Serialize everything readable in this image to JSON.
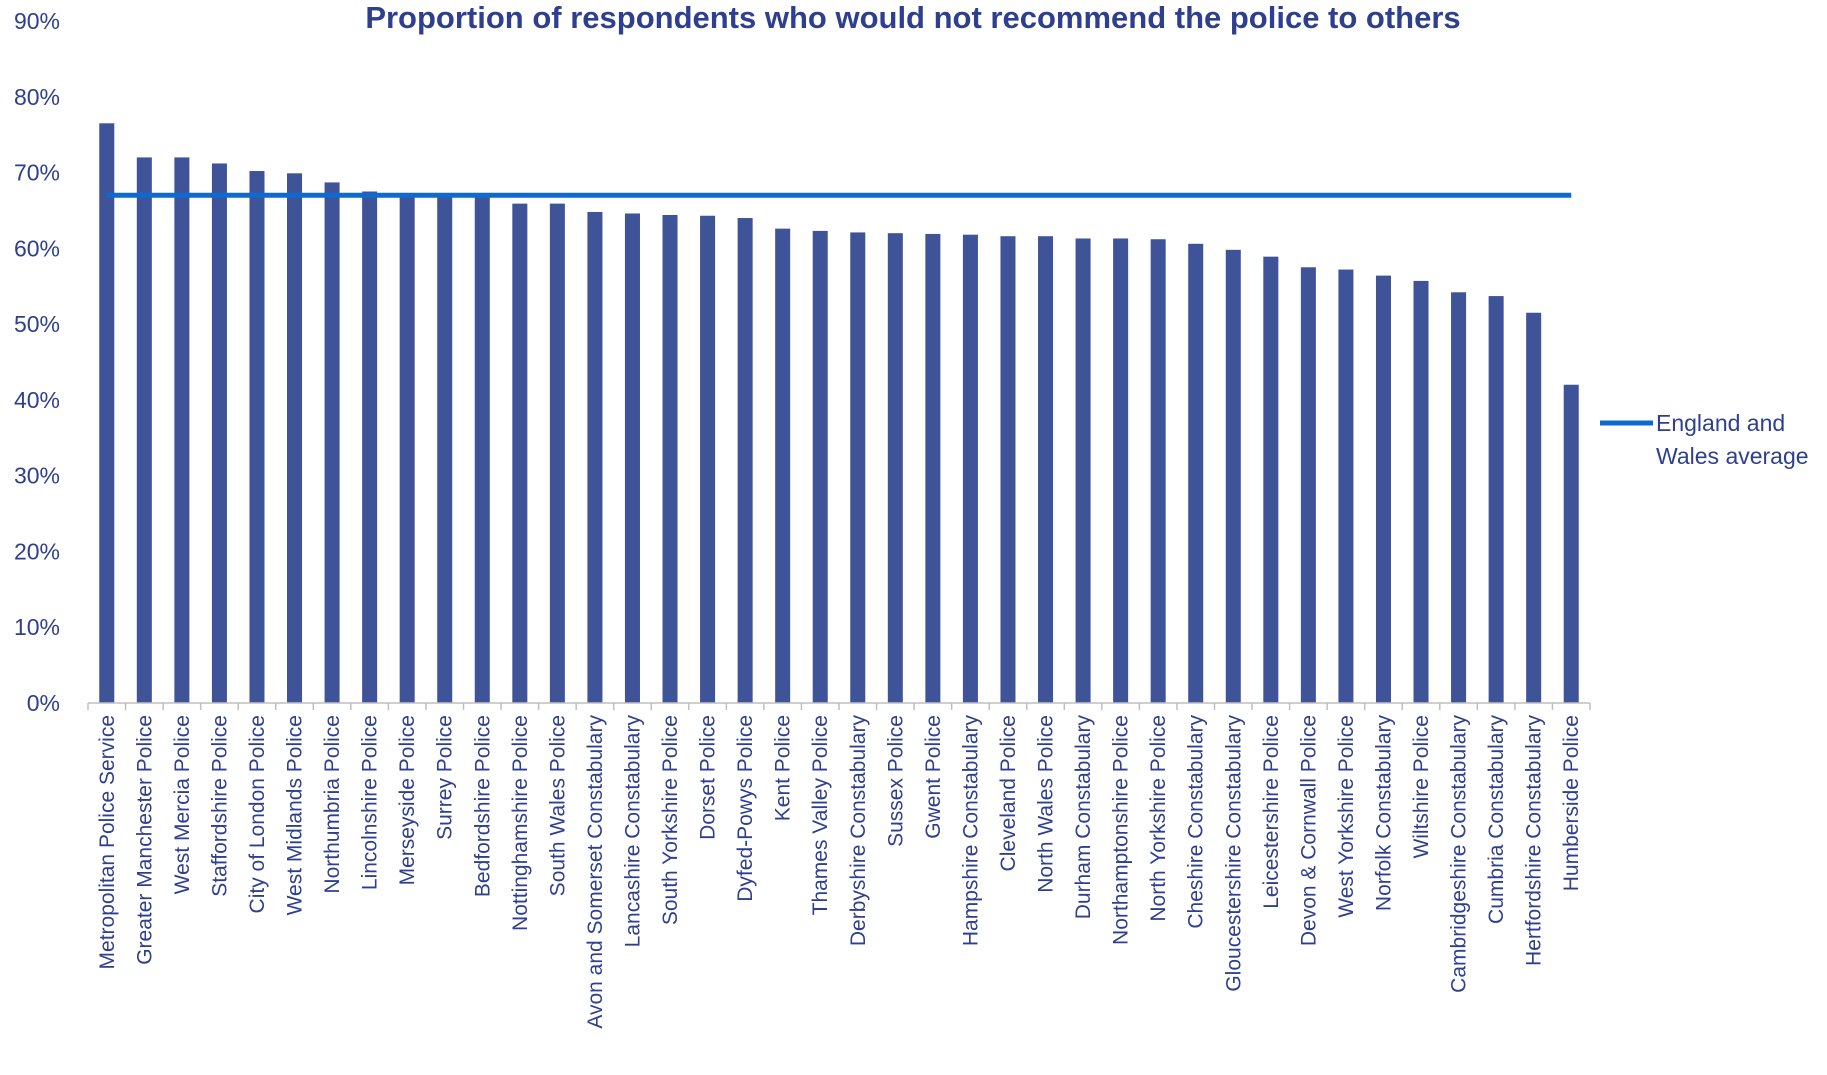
{
  "chart_data": {
    "type": "bar",
    "title": "Proportion of respondents who would not recommend the police to others",
    "xlabel": "",
    "ylabel": "",
    "ylim": [
      0,
      90
    ],
    "yticks": [
      "0%",
      "10%",
      "20%",
      "30%",
      "40%",
      "50%",
      "60%",
      "70%",
      "80%",
      "90%"
    ],
    "categories": [
      "Metropolitan Police Service",
      "Greater Manchester Police",
      "West Mercia Police",
      "Staffordshire Police",
      "City of London Police",
      "West Midlands Police",
      "Northumbria Police",
      "Lincolnshire Police",
      "Merseyside Police",
      "Surrey Police",
      "Bedfordshire Police",
      "Nottinghamshire Police",
      "South Wales Police",
      "Avon and Somerset Constabulary",
      "Lancashire Constabulary",
      "South Yorkshire Police",
      "Dorset Police",
      "Dyfed-Powys Police",
      "Kent Police",
      "Thames Valley Police",
      "Derbyshire Constabulary",
      "Sussex Police",
      "Gwent Police",
      "Hampshire Constabulary",
      "Cleveland Police",
      "North Wales Police",
      "Durham Constabulary",
      "Northamptonshire Police",
      "North Yorkshire Police",
      "Cheshire Constabulary",
      "Gloucestershire Constabulary",
      "Leicestershire Police",
      "Devon & Cornwall Police",
      "West Yorkshire Police",
      "Norfolk Constabulary",
      "Wiltshire Police",
      "Cambridgeshire Constabulary",
      "Cumbria Constabulary",
      "Hertfordshire Constabulary",
      "Humberside Police"
    ],
    "series": [
      {
        "type": "bar",
        "color": "#3f5398",
        "values": [
          76.5,
          72.0,
          72.0,
          71.2,
          70.2,
          69.9,
          68.7,
          67.5,
          67.0,
          67.0,
          66.8,
          65.9,
          65.9,
          64.8,
          64.6,
          64.4,
          64.3,
          64.0,
          62.6,
          62.3,
          62.1,
          62.0,
          61.9,
          61.8,
          61.6,
          61.6,
          61.3,
          61.3,
          61.2,
          60.6,
          59.8,
          58.9,
          57.5,
          57.2,
          56.4,
          55.7,
          54.2,
          53.7,
          51.5,
          42.0
        ]
      },
      {
        "type": "line",
        "name": "England and Wales average",
        "color": "#0f6ad0",
        "value": 67.0
      }
    ],
    "legend": {
      "position": "right",
      "lines": [
        "England and",
        "Wales average"
      ]
    },
    "grid": false
  }
}
